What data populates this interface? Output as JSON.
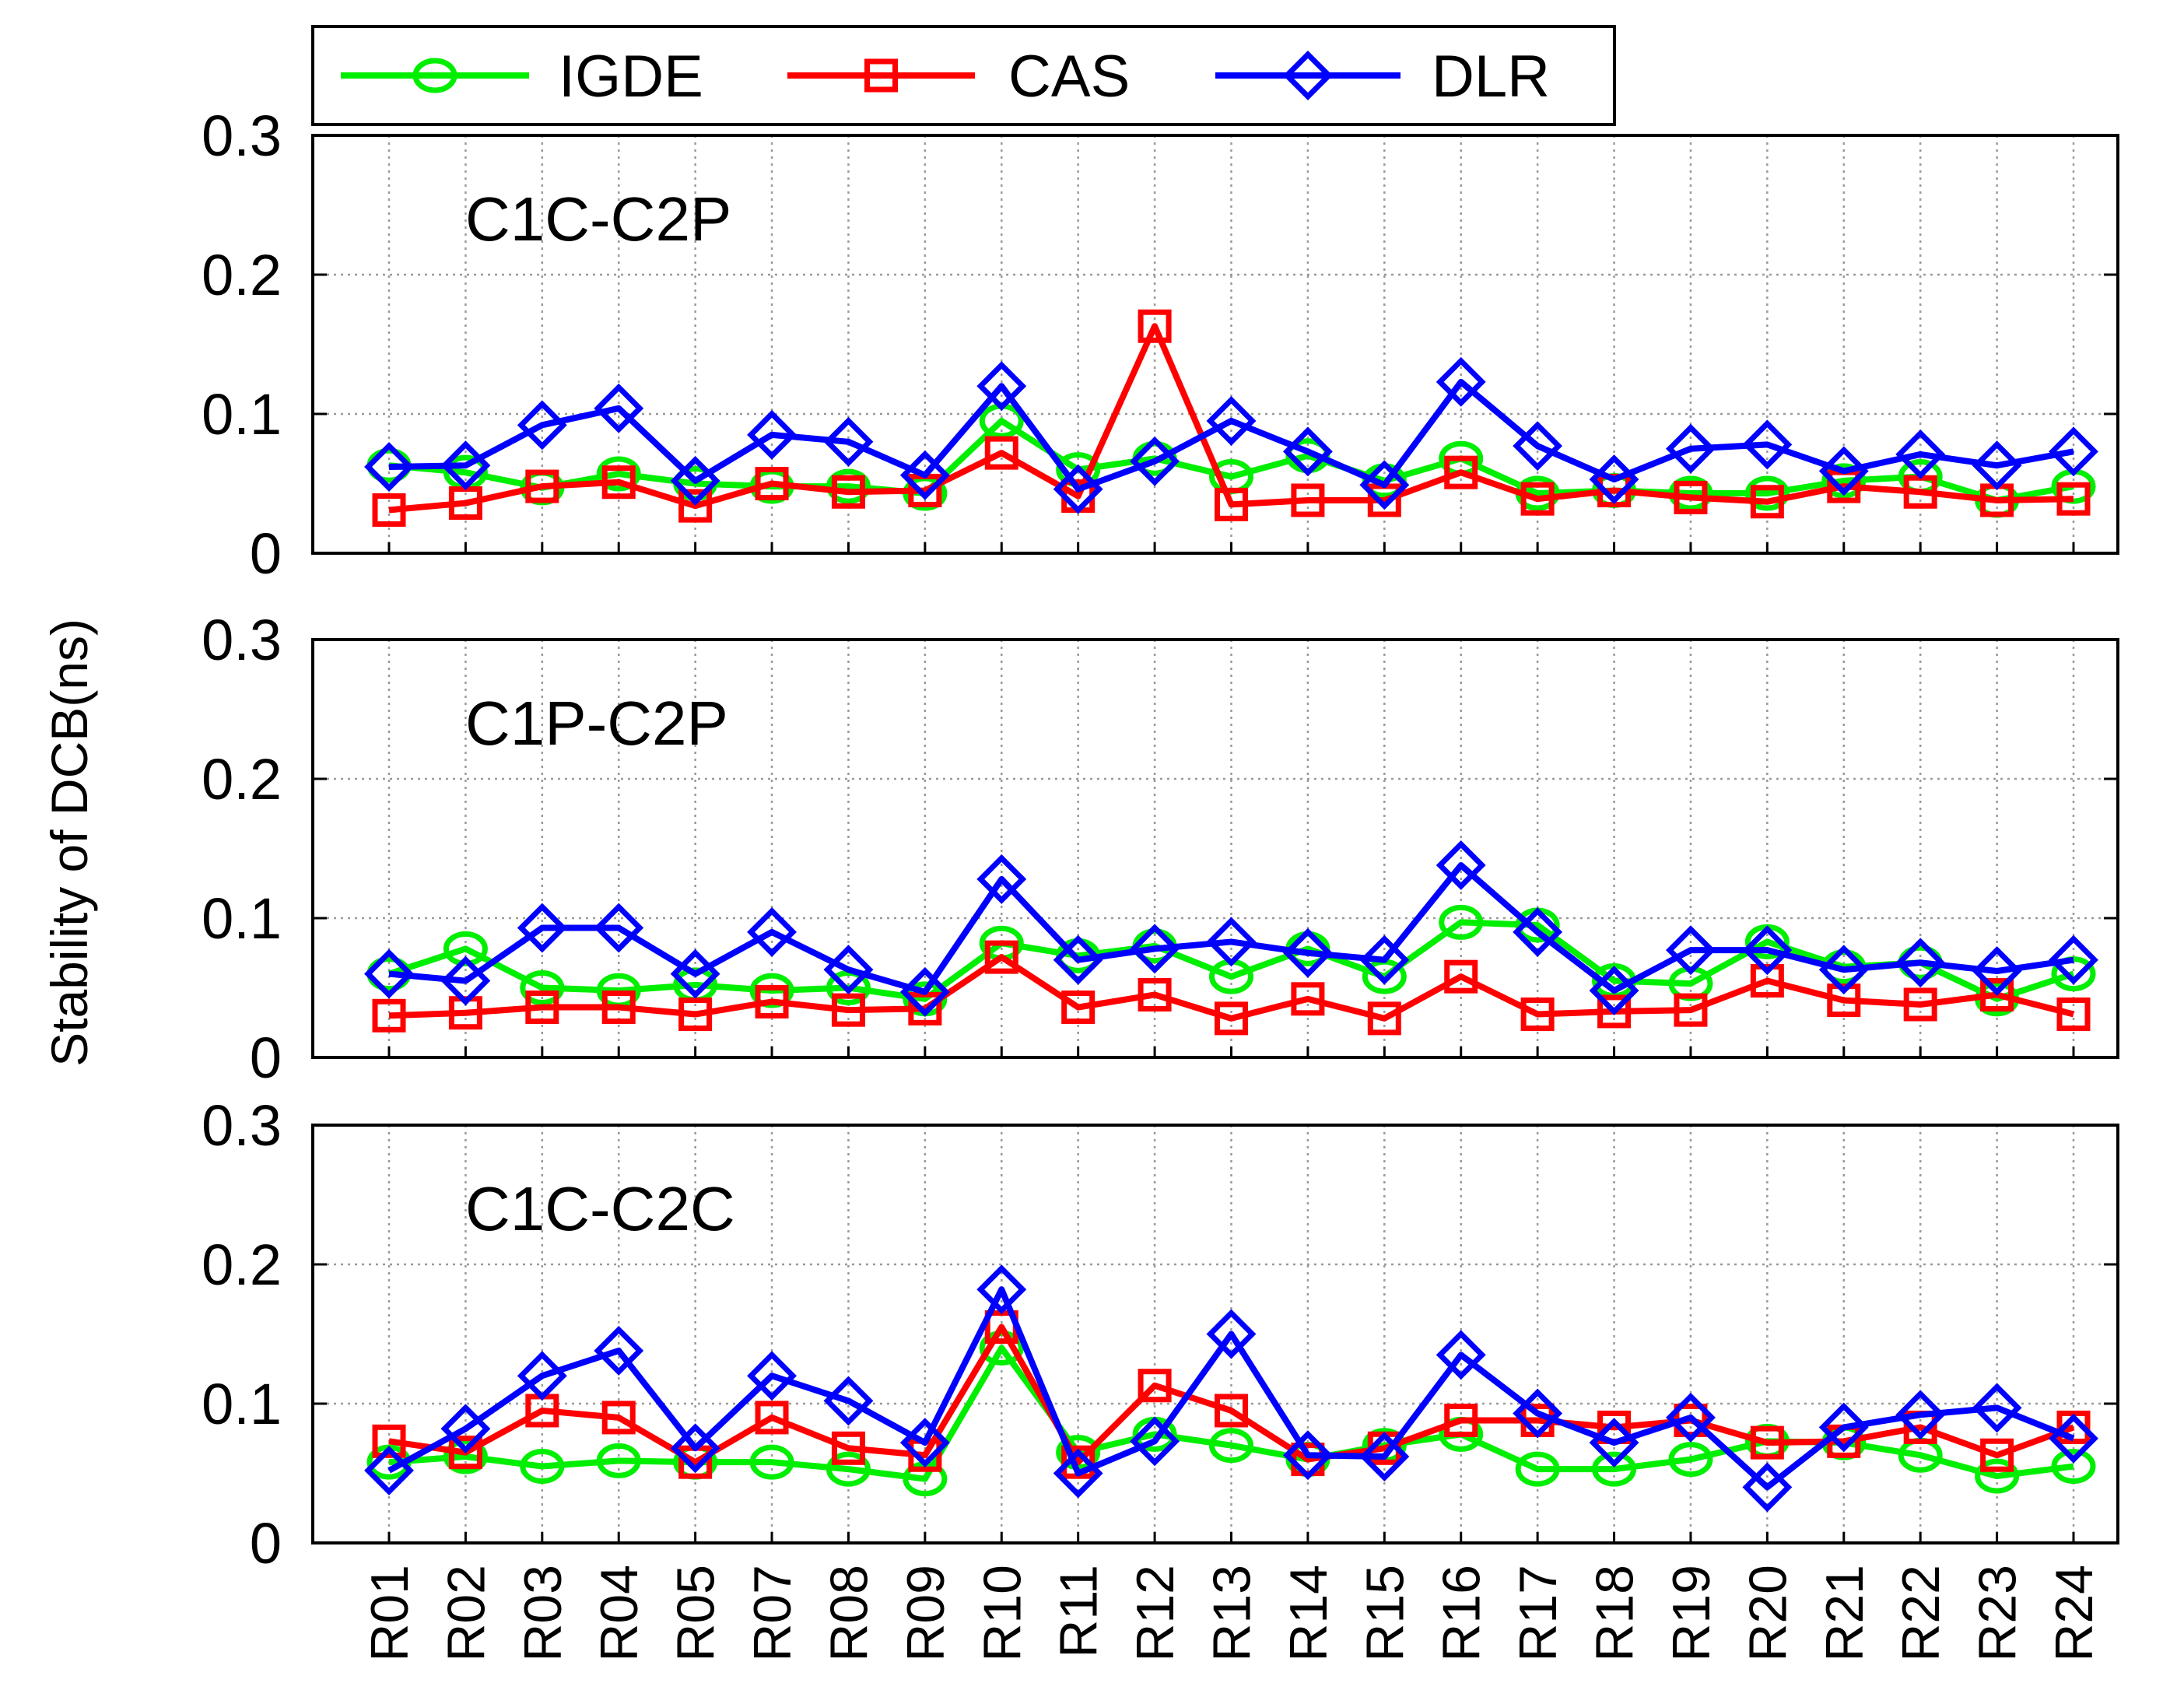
{
  "chart_data": {
    "type": "line",
    "ylabel": "Stability of DCB(ns)",
    "ylim": [
      0,
      0.3
    ],
    "yticks": [
      0,
      0.1,
      0.2,
      0.3
    ],
    "ytick_labels": [
      "0",
      "0.1",
      "0.2",
      "0.3"
    ],
    "grid": true,
    "legend_position": "top",
    "categories": [
      "R01",
      "R02",
      "R03",
      "R04",
      "R05",
      "R07",
      "R08",
      "R09",
      "R10",
      "R11",
      "R12",
      "R13",
      "R14",
      "R15",
      "R16",
      "R17",
      "R18",
      "R19",
      "R20",
      "R21",
      "R22",
      "R23",
      "R24"
    ],
    "series_styles": [
      {
        "name": "IGDE",
        "color": "#00ee00",
        "marker": "circle"
      },
      {
        "name": "CAS",
        "color": "#ff0000",
        "marker": "square"
      },
      {
        "name": "DLR",
        "color": "#0000ff",
        "marker": "diamond"
      }
    ],
    "panels": [
      {
        "label": "C1C-C2P",
        "series": [
          {
            "name": "IGDE",
            "values": [
              0.063,
              0.058,
              0.047,
              0.057,
              0.05,
              0.048,
              0.048,
              0.043,
              0.095,
              0.06,
              0.068,
              0.055,
              0.07,
              0.052,
              0.068,
              0.043,
              0.045,
              0.043,
              0.043,
              0.052,
              0.055,
              0.038,
              0.048
            ]
          },
          {
            "name": "CAS",
            "values": [
              0.031,
              0.036,
              0.048,
              0.051,
              0.034,
              0.05,
              0.044,
              0.045,
              0.072,
              0.041,
              0.163,
              0.035,
              0.038,
              0.038,
              0.058,
              0.039,
              0.045,
              0.04,
              0.037,
              0.048,
              0.044,
              0.038,
              0.039
            ]
          },
          {
            "name": "DLR",
            "values": [
              0.062,
              0.063,
              0.092,
              0.104,
              0.052,
              0.085,
              0.08,
              0.056,
              0.12,
              0.046,
              0.066,
              0.095,
              0.073,
              0.049,
              0.123,
              0.077,
              0.053,
              0.075,
              0.078,
              0.059,
              0.071,
              0.063,
              0.073
            ]
          }
        ]
      },
      {
        "label": "C1P-C2P",
        "series": [
          {
            "name": "IGDE",
            "values": [
              0.06,
              0.078,
              0.05,
              0.048,
              0.052,
              0.048,
              0.05,
              0.042,
              0.082,
              0.073,
              0.08,
              0.058,
              0.078,
              0.058,
              0.097,
              0.095,
              0.055,
              0.053,
              0.083,
              0.065,
              0.068,
              0.042,
              0.06
            ]
          },
          {
            "name": "CAS",
            "values": [
              0.03,
              0.032,
              0.036,
              0.036,
              0.031,
              0.04,
              0.034,
              0.035,
              0.072,
              0.036,
              0.045,
              0.028,
              0.042,
              0.028,
              0.058,
              0.031,
              0.033,
              0.034,
              0.055,
              0.041,
              0.038,
              0.045,
              0.031
            ]
          },
          {
            "name": "DLR",
            "values": [
              0.06,
              0.055,
              0.093,
              0.093,
              0.06,
              0.09,
              0.063,
              0.047,
              0.128,
              0.07,
              0.078,
              0.083,
              0.075,
              0.07,
              0.138,
              0.09,
              0.048,
              0.077,
              0.077,
              0.063,
              0.068,
              0.062,
              0.07
            ]
          }
        ]
      },
      {
        "label": "C1C-C2C",
        "series": [
          {
            "name": "IGDE",
            "values": [
              0.058,
              0.062,
              0.055,
              0.059,
              0.058,
              0.058,
              0.053,
              0.046,
              0.14,
              0.065,
              0.078,
              0.07,
              0.06,
              0.07,
              0.078,
              0.053,
              0.053,
              0.06,
              0.073,
              0.072,
              0.063,
              0.048,
              0.055
            ]
          },
          {
            "name": "CAS",
            "values": [
              0.073,
              0.065,
              0.095,
              0.09,
              0.058,
              0.09,
              0.068,
              0.063,
              0.155,
              0.058,
              0.113,
              0.095,
              0.06,
              0.068,
              0.088,
              0.088,
              0.083,
              0.088,
              0.072,
              0.073,
              0.083,
              0.063,
              0.083
            ]
          },
          {
            "name": "DLR",
            "values": [
              0.052,
              0.082,
              0.12,
              0.138,
              0.068,
              0.12,
              0.102,
              0.072,
              0.182,
              0.05,
              0.073,
              0.15,
              0.063,
              0.062,
              0.135,
              0.093,
              0.072,
              0.09,
              0.04,
              0.083,
              0.092,
              0.097,
              0.075
            ]
          }
        ]
      }
    ]
  }
}
